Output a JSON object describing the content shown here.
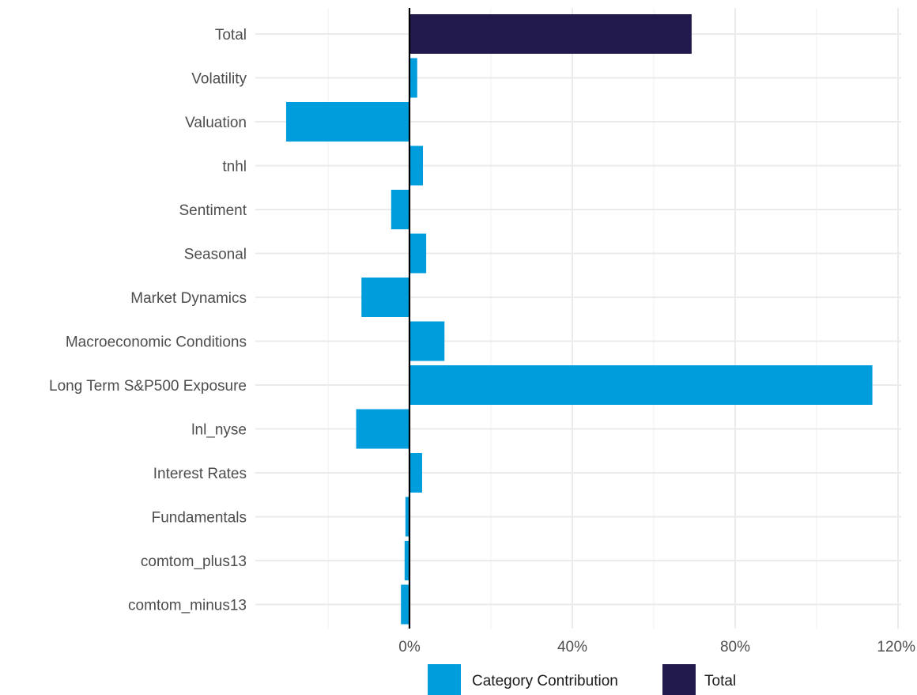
{
  "chart_data": {
    "type": "bar",
    "orientation": "horizontal",
    "categories": [
      "Total",
      "Volatility",
      "Valuation",
      "tnhl",
      "Sentiment",
      "Seasonal",
      "Market Dynamics",
      "Macroeconomic Conditions",
      "Long Term S&P500 Exposure",
      "lnl_nyse",
      "Interest Rates",
      "Fundamentals",
      "comtom_plus13",
      "comtom_minus13"
    ],
    "values": [
      69.3,
      1.9,
      -30.3,
      3.3,
      -4.5,
      4.1,
      -11.8,
      8.6,
      113.7,
      -13.1,
      3.1,
      -1.0,
      -1.2,
      -2.1
    ],
    "groups": [
      "Total",
      "Category Contribution",
      "Category Contribution",
      "Category Contribution",
      "Category Contribution",
      "Category Contribution",
      "Category Contribution",
      "Category Contribution",
      "Category Contribution",
      "Category Contribution",
      "Category Contribution",
      "Category Contribution",
      "Category Contribution",
      "Category Contribution"
    ],
    "xlim": [
      -40,
      120
    ],
    "x_ticks": [
      0,
      40,
      80,
      120
    ],
    "x_tick_labels": [
      "0%",
      "40%",
      "80%",
      "120%"
    ],
    "title": "",
    "xlabel": "",
    "ylabel": "",
    "grid": true,
    "legend_position": "bottom",
    "legend": [
      {
        "label": "Category Contribution",
        "color": "#009ddc"
      },
      {
        "label": "Total",
        "color": "#21194b"
      }
    ]
  }
}
